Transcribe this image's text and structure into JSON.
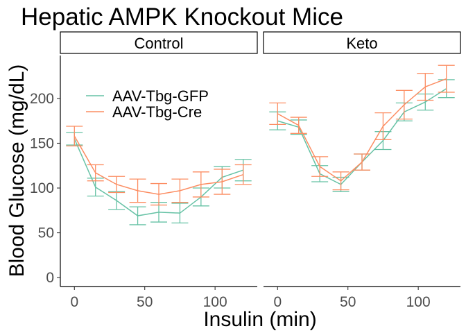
{
  "chart_data": {
    "type": "line",
    "title": "Hepatic AMPK Knockout Mice",
    "xlabel": "Insulin (min)",
    "ylabel": "Blood Glucose (mg/dL)",
    "x_ticks": [
      0,
      50,
      100
    ],
    "y_ticks": [
      0,
      50,
      100,
      150,
      200
    ],
    "xlim": [
      -10,
      130
    ],
    "ylim": [
      -10,
      248
    ],
    "grid": false,
    "legend_position": "top-left (inside Control panel)",
    "colors": {
      "AAV-Tbg-GFP": "#66c2a5",
      "AAV-Tbg-Cre": "#fc8d62"
    },
    "facets": [
      {
        "label": "Control",
        "series": [
          {
            "name": "AAV-Tbg-GFP",
            "x": [
              0,
              15,
              30,
              45,
              60,
              75,
              90,
              105,
              120
            ],
            "y": [
              155,
              101,
              86,
              69,
              73,
              72,
              90,
              112,
              120
            ],
            "err": [
              7,
              10,
              10,
              10,
              11,
              11,
              10,
              12,
              12
            ]
          },
          {
            "name": "AAV-Tbg-Cre",
            "x": [
              0,
              15,
              30,
              45,
              60,
              75,
              90,
              105,
              120
            ],
            "y": [
              158,
              117,
              104,
              97,
              93,
              97,
              104,
              107,
              115
            ],
            "err": [
              11,
              9,
              9,
              13,
              12,
              13,
              14,
              14,
              11
            ]
          }
        ]
      },
      {
        "label": "Keto",
        "series": [
          {
            "name": "AAV-Tbg-GFP",
            "x": [
              0,
              15,
              30,
              45,
              60,
              75,
              90,
              105,
              120
            ],
            "y": [
              175,
              168,
              116,
              104,
              129,
              153,
              185,
              196,
              211
            ],
            "err": [
              10,
              8,
              9,
              8,
              9,
              10,
              10,
              9,
              10
            ]
          },
          {
            "name": "AAV-Tbg-Cre",
            "x": [
              0,
              15,
              30,
              45,
              60,
              75,
              90,
              105,
              120
            ],
            "y": [
              183,
              170,
              124,
              108,
              129,
              169,
              193,
              213,
              222
            ],
            "err": [
              12,
              9,
              11,
              10,
              9,
              15,
              16,
              15,
              15
            ]
          }
        ]
      }
    ]
  }
}
